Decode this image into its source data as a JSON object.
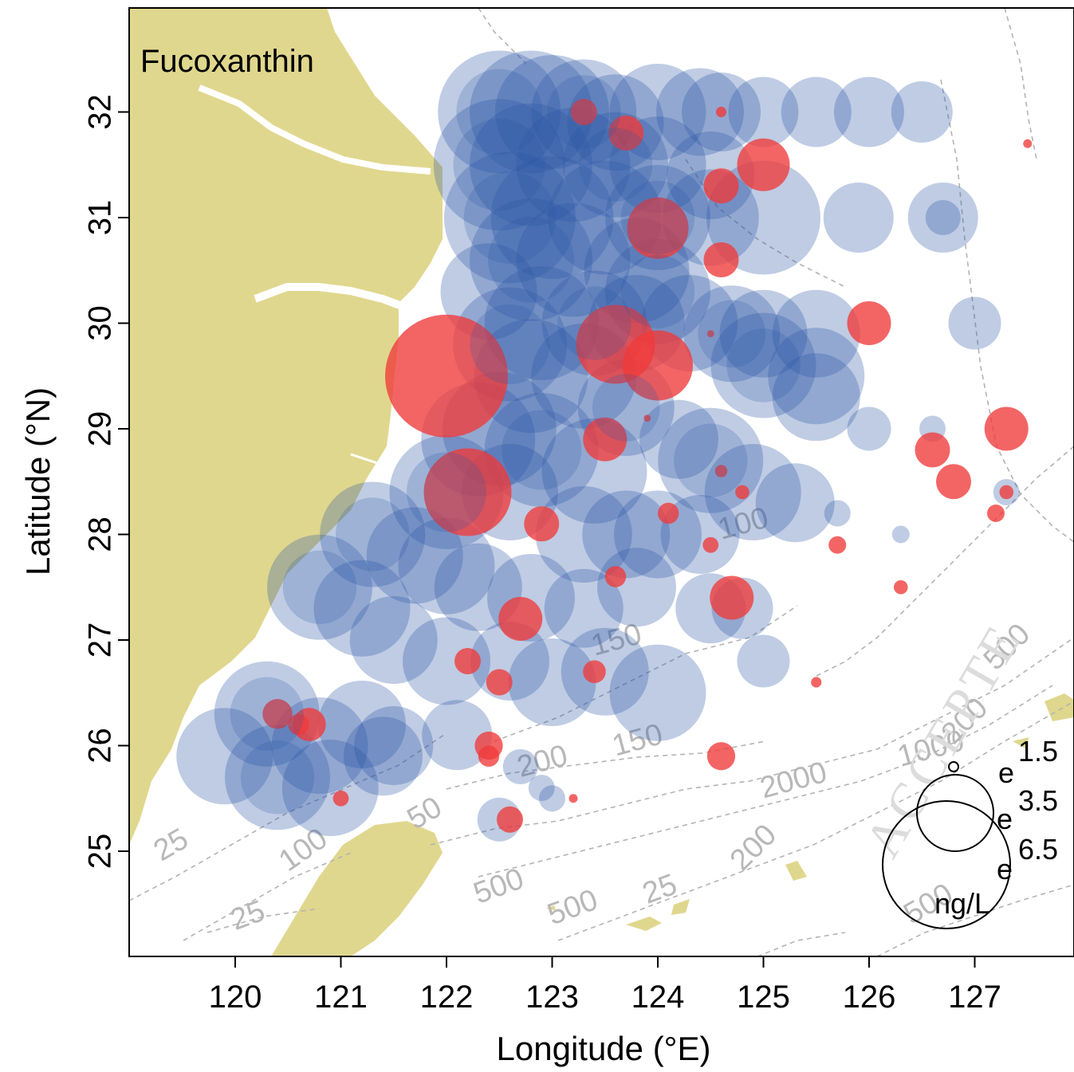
{
  "map": {
    "panel_label": "Fucoxanthin",
    "x_axis_title": "Longitude (°E)",
    "y_axis_title": "Latitude (°N)",
    "x_ticks": [
      120,
      121,
      122,
      123,
      124,
      125,
      126,
      127
    ],
    "y_ticks": [
      25,
      26,
      27,
      28,
      29,
      30,
      31,
      32
    ],
    "lon_range": [
      119,
      128
    ],
    "lat_range": [
      24,
      33
    ],
    "land_color": "#e0d78e",
    "contour_color": "#b3b3b3",
    "high_color": "#2a56a6",
    "positive_color": "#f03a3a",
    "contour_labels": [
      {
        "text": "25",
        "lon": 119.3,
        "lat": 24.9,
        "angle": -30
      },
      {
        "text": "25",
        "lon": 120.0,
        "lat": 24.25,
        "angle": -20
      },
      {
        "text": "100",
        "lon": 120.5,
        "lat": 24.8,
        "angle": -35
      },
      {
        "text": "50",
        "lon": 121.7,
        "lat": 25.2,
        "angle": -30
      },
      {
        "text": "500",
        "lon": 122.3,
        "lat": 24.5,
        "angle": -20
      },
      {
        "text": "500",
        "lon": 123.0,
        "lat": 24.3,
        "angle": -20
      },
      {
        "text": "25",
        "lon": 123.9,
        "lat": 24.5,
        "angle": -20
      },
      {
        "text": "200",
        "lon": 122.7,
        "lat": 25.7,
        "angle": -15
      },
      {
        "text": "150",
        "lon": 123.6,
        "lat": 25.9,
        "angle": -15
      },
      {
        "text": "150",
        "lon": 123.4,
        "lat": 26.85,
        "angle": -15
      },
      {
        "text": "100",
        "lon": 124.6,
        "lat": 27.95,
        "angle": -15
      },
      {
        "text": "200",
        "lon": 124.8,
        "lat": 24.8,
        "angle": -45
      },
      {
        "text": "2000",
        "lon": 125.0,
        "lat": 25.5,
        "angle": -15
      },
      {
        "text": "1000",
        "lon": 126.3,
        "lat": 25.8,
        "angle": -15
      },
      {
        "text": "500",
        "lon": 127.2,
        "lat": 26.7,
        "angle": -45
      },
      {
        "text": "200",
        "lon": 126.8,
        "lat": 26.0,
        "angle": -45
      },
      {
        "text": "500",
        "lon": 126.4,
        "lat": 24.3,
        "angle": -30
      }
    ],
    "legend": {
      "labels": [
        "1.5",
        "3.5",
        "6.5"
      ],
      "prefix": "e",
      "unit": "ng/L"
    }
  },
  "chart_data": {
    "type": "scatter",
    "note_series": "bubble map of stations; blue = high concentration (radius scales with value), red = contrasting stations",
    "points_blue": [
      [
        122.5,
        32.0,
        7.0
      ],
      [
        122.8,
        32.0,
        7.0
      ],
      [
        123.0,
        32.0,
        6.5
      ],
      [
        123.3,
        32.0,
        6.0
      ],
      [
        123.6,
        31.9,
        5.5
      ],
      [
        124.0,
        32.0,
        5.5
      ],
      [
        124.4,
        32.0,
        5.0
      ],
      [
        124.6,
        32.0,
        4.5
      ],
      [
        125.0,
        32.0,
        4.0
      ],
      [
        125.5,
        32.0,
        4.0
      ],
      [
        126.0,
        32.0,
        4.0
      ],
      [
        126.5,
        32.0,
        3.5
      ],
      [
        122.5,
        31.5,
        7.5
      ],
      [
        122.8,
        31.5,
        7.0
      ],
      [
        123.2,
        31.5,
        6.5
      ],
      [
        123.6,
        31.5,
        6.0
      ],
      [
        124.0,
        31.5,
        5.5
      ],
      [
        124.5,
        31.4,
        5.0
      ],
      [
        122.6,
        31.0,
        7.5
      ],
      [
        123.0,
        31.0,
        7.0
      ],
      [
        123.5,
        31.0,
        6.5
      ],
      [
        124.0,
        31.0,
        6.0
      ],
      [
        124.5,
        31.0,
        5.5
      ],
      [
        125.0,
        31.0,
        6.5
      ],
      [
        125.9,
        31.0,
        4.0
      ],
      [
        126.7,
        31.0,
        4.0
      ],
      [
        126.7,
        31.0,
        2.0
      ],
      [
        122.8,
        30.6,
        7.0
      ],
      [
        123.2,
        30.6,
        6.5
      ],
      [
        123.8,
        30.5,
        6.0
      ],
      [
        124.0,
        30.3,
        6.0
      ],
      [
        122.4,
        30.3,
        5.5
      ],
      [
        122.9,
        30.0,
        6.5
      ],
      [
        123.4,
        30.0,
        6.0
      ],
      [
        123.8,
        30.0,
        5.5
      ],
      [
        124.3,
        30.0,
        5.5
      ],
      [
        124.7,
        29.9,
        5.5
      ],
      [
        125.0,
        29.9,
        5.0
      ],
      [
        125.5,
        29.9,
        5.0
      ],
      [
        125.0,
        29.6,
        6.0
      ],
      [
        125.5,
        29.5,
        5.5
      ],
      [
        125.5,
        29.3,
        5.0
      ],
      [
        122.6,
        29.8,
        6.5
      ],
      [
        122.8,
        29.5,
        6.5
      ],
      [
        123.3,
        29.5,
        6.0
      ],
      [
        123.7,
        29.2,
        5.5
      ],
      [
        122.5,
        29.0,
        6.5
      ],
      [
        122.3,
        28.9,
        6.5
      ],
      [
        122.9,
        28.8,
        6.5
      ],
      [
        123.4,
        28.6,
        6.0
      ],
      [
        124.2,
        28.9,
        4.5
      ],
      [
        124.5,
        28.7,
        6.0
      ],
      [
        124.9,
        28.4,
        5.5
      ],
      [
        125.3,
        28.3,
        4.5
      ],
      [
        126.0,
        29.0,
        2.5
      ],
      [
        126.6,
        29.0,
        1.5
      ],
      [
        127.3,
        28.4,
        1.5
      ],
      [
        122.0,
        28.4,
        6.5
      ],
      [
        122.6,
        28.4,
        5.5
      ],
      [
        123.3,
        28.0,
        5.5
      ],
      [
        123.7,
        28.0,
        5.0
      ],
      [
        124.0,
        28.0,
        5.0
      ],
      [
        124.4,
        28.0,
        4.5
      ],
      [
        121.3,
        28.0,
        6.0
      ],
      [
        121.7,
        27.8,
        5.5
      ],
      [
        122.0,
        27.7,
        5.5
      ],
      [
        122.3,
        27.5,
        5.0
      ],
      [
        122.8,
        27.4,
        5.0
      ],
      [
        123.3,
        27.3,
        4.5
      ],
      [
        123.8,
        27.5,
        4.5
      ],
      [
        124.5,
        27.3,
        4.0
      ],
      [
        124.8,
        27.3,
        3.5
      ],
      [
        120.8,
        27.5,
        6.0
      ],
      [
        121.2,
        27.3,
        5.5
      ],
      [
        121.5,
        27.0,
        5.0
      ],
      [
        122.0,
        26.8,
        5.0
      ],
      [
        122.6,
        26.8,
        4.5
      ],
      [
        123.0,
        26.6,
        5.0
      ],
      [
        123.5,
        26.7,
        5.0
      ],
      [
        124.0,
        26.5,
        5.5
      ],
      [
        125.0,
        26.8,
        3.0
      ],
      [
        120.3,
        26.3,
        6.0
      ],
      [
        120.8,
        26.0,
        5.5
      ],
      [
        121.2,
        26.2,
        5.0
      ],
      [
        121.5,
        26.0,
        4.5
      ],
      [
        122.1,
        26.1,
        4.0
      ],
      [
        119.9,
        25.9,
        5.5
      ],
      [
        120.4,
        25.7,
        6.0
      ],
      [
        120.9,
        25.6,
        5.5
      ],
      [
        121.4,
        25.9,
        4.5
      ],
      [
        122.7,
        25.8,
        2.0
      ],
      [
        122.9,
        25.6,
        1.5
      ],
      [
        123.0,
        25.5,
        1.5
      ],
      [
        122.5,
        25.3,
        2.5
      ],
      [
        127.0,
        30.0,
        3.0
      ],
      [
        125.7,
        28.2,
        1.5
      ],
      [
        126.3,
        28.0,
        1.0
      ]
    ],
    "points_red": [
      [
        122.0,
        29.5,
        7.0
      ],
      [
        122.2,
        28.4,
        5.0
      ],
      [
        123.6,
        29.8,
        4.5
      ],
      [
        124.0,
        29.6,
        4.0
      ],
      [
        123.5,
        28.9,
        2.5
      ],
      [
        124.0,
        30.9,
        3.5
      ],
      [
        125.0,
        31.5,
        3.0
      ],
      [
        124.6,
        31.3,
        2.0
      ],
      [
        124.6,
        30.6,
        2.0
      ],
      [
        123.7,
        31.8,
        2.0
      ],
      [
        123.3,
        32.0,
        1.5
      ],
      [
        126.0,
        30.0,
        2.5
      ],
      [
        127.3,
        29.0,
        2.5
      ],
      [
        126.6,
        28.8,
        2.0
      ],
      [
        126.8,
        28.5,
        2.0
      ],
      [
        127.2,
        28.2,
        1.0
      ],
      [
        127.3,
        28.4,
        0.8
      ],
      [
        122.9,
        28.1,
        2.0
      ],
      [
        124.1,
        28.2,
        1.2
      ],
      [
        124.8,
        28.4,
        0.8
      ],
      [
        124.6,
        28.6,
        0.7
      ],
      [
        125.7,
        27.9,
        1.0
      ],
      [
        126.3,
        27.5,
        0.8
      ],
      [
        124.5,
        27.9,
        0.9
      ],
      [
        123.6,
        27.6,
        1.2
      ],
      [
        124.7,
        27.4,
        2.5
      ],
      [
        122.7,
        27.2,
        2.5
      ],
      [
        122.2,
        26.8,
        1.5
      ],
      [
        122.5,
        26.6,
        1.5
      ],
      [
        123.4,
        26.7,
        1.3
      ],
      [
        122.4,
        26.0,
        1.6
      ],
      [
        122.4,
        25.9,
        1.2
      ],
      [
        124.6,
        25.9,
        1.6
      ],
      [
        122.6,
        25.3,
        1.5
      ],
      [
        123.2,
        25.5,
        0.5
      ],
      [
        121.0,
        25.5,
        0.9
      ],
      [
        120.4,
        26.3,
        1.7
      ],
      [
        120.6,
        26.2,
        1.2
      ],
      [
        120.7,
        26.2,
        1.9
      ],
      [
        124.6,
        32.0,
        0.6
      ],
      [
        127.5,
        31.7,
        0.5
      ],
      [
        125.5,
        26.6,
        0.6
      ],
      [
        124.5,
        29.9,
        0.4
      ],
      [
        123.9,
        29.1,
        0.4
      ]
    ]
  }
}
